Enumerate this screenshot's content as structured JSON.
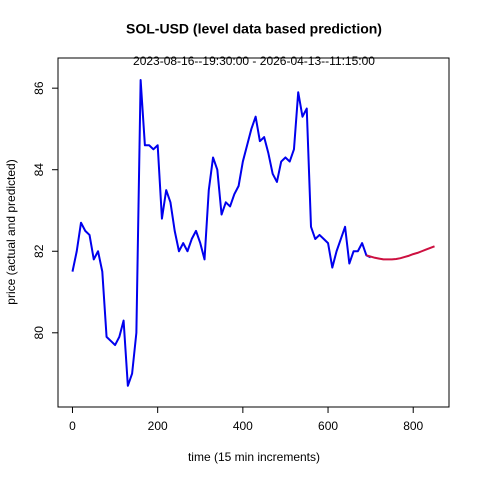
{
  "chart_data": {
    "type": "line",
    "title": "SOL-USD (level data based prediction)",
    "subtitle": "2023-08-16--19:30:00  -  2026-04-13--11:15:00",
    "xlabel": "time (15 min increments)",
    "ylabel": "price (actual and predicted)",
    "x": [
      0,
      10,
      20,
      30,
      40,
      50,
      60,
      70,
      80,
      90,
      100,
      110,
      120,
      130,
      140,
      150,
      160,
      170,
      180,
      190,
      200,
      210,
      220,
      230,
      240,
      250,
      260,
      270,
      280,
      290,
      300,
      310,
      320,
      330,
      340,
      350,
      360,
      370,
      380,
      390,
      400,
      410,
      420,
      430,
      440,
      450,
      460,
      470,
      480,
      490,
      500,
      510,
      520,
      530,
      540,
      550,
      560,
      570,
      580,
      590,
      600,
      610,
      620,
      630,
      640,
      650,
      660,
      670,
      680,
      690,
      700,
      710,
      720,
      730,
      740,
      750,
      760,
      770,
      780,
      790,
      800,
      810,
      820,
      830,
      840,
      850
    ],
    "series": [
      {
        "color": "#0000ee",
        "values": [
          81.5,
          82.0,
          82.7,
          82.5,
          82.4,
          81.8,
          82.0,
          81.5,
          79.9,
          79.8,
          79.7,
          79.9,
          80.3,
          78.7,
          79.0,
          80.0,
          86.2,
          84.6,
          84.6,
          84.5,
          84.6,
          82.8,
          83.5,
          83.2,
          82.5,
          82.0,
          82.2,
          82.0,
          82.3,
          82.5,
          82.2,
          81.8,
          83.5,
          84.3,
          84.0,
          82.9,
          83.2,
          83.1,
          83.4,
          83.6,
          84.2,
          84.6,
          85.0,
          85.3,
          84.7,
          84.8,
          84.4,
          83.9,
          83.7,
          84.2,
          84.3,
          84.2,
          84.5,
          85.9,
          85.3,
          85.5,
          82.6,
          82.3,
          82.4,
          82.3,
          82.2,
          81.6,
          82.0,
          82.3,
          82.6,
          81.7,
          82.0,
          82.0,
          82.2,
          81.9,
          81.85,
          null,
          null,
          null,
          null,
          null,
          null,
          null,
          null,
          null,
          null,
          null,
          null,
          null,
          null,
          null
        ]
      },
      {
        "color": "#cd1040",
        "values": [
          null,
          null,
          null,
          null,
          null,
          null,
          null,
          null,
          null,
          null,
          null,
          null,
          null,
          null,
          null,
          null,
          null,
          null,
          null,
          null,
          null,
          null,
          null,
          null,
          null,
          null,
          null,
          null,
          null,
          null,
          null,
          null,
          null,
          null,
          null,
          null,
          null,
          null,
          null,
          null,
          null,
          null,
          null,
          null,
          null,
          null,
          null,
          null,
          null,
          null,
          null,
          null,
          null,
          null,
          null,
          null,
          null,
          null,
          null,
          null,
          null,
          null,
          null,
          null,
          null,
          null,
          null,
          null,
          null,
          81.9,
          81.87,
          81.84,
          81.82,
          81.8,
          81.8,
          81.8,
          81.81,
          81.83,
          81.86,
          81.89,
          81.93,
          81.96,
          82.0,
          82.04,
          82.08,
          82.12
        ]
      }
    ],
    "xlim": [
      -34,
      884
    ],
    "xticks": [
      0,
      200,
      400,
      600,
      800
    ],
    "ylim": [
      78.18,
      86.74
    ],
    "yticks": [
      80,
      82,
      84,
      86
    ]
  }
}
